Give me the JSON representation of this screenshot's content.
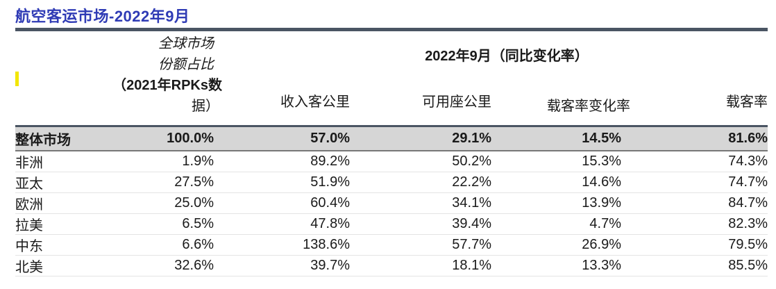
{
  "title": "航空客运市场-2022年9月",
  "header": {
    "share_line1": "全球市场",
    "share_line2": "份额占比",
    "share_line3": "（2021年RPKs数",
    "share_line4": "据）",
    "group_title": "2022年9月（同比变化率）",
    "col_rpk": "收入客公里",
    "col_ask": "可用座公里",
    "col_plf_change": "载客率变化率",
    "col_plf": "载客率"
  },
  "rows": [
    {
      "name": "整体市场",
      "share": "100.0%",
      "rpk": "57.0%",
      "ask": "29.1%",
      "plf_change": "14.5%",
      "plf": "81.6%"
    },
    {
      "name": "非洲",
      "share": "1.9%",
      "rpk": "89.2%",
      "ask": "50.2%",
      "plf_change": "15.3%",
      "plf": "74.3%"
    },
    {
      "name": "亚太",
      "share": "27.5%",
      "rpk": "51.9%",
      "ask": "22.2%",
      "plf_change": "14.6%",
      "plf": "74.7%"
    },
    {
      "name": "欧洲",
      "share": "25.0%",
      "rpk": "60.4%",
      "ask": "34.1%",
      "plf_change": "13.9%",
      "plf": "84.7%"
    },
    {
      "name": "拉美",
      "share": "6.5%",
      "rpk": "47.8%",
      "ask": "39.4%",
      "plf_change": "4.7%",
      "plf": "82.3%"
    },
    {
      "name": "中东",
      "share": "6.6%",
      "rpk": "138.6%",
      "ask": "57.7%",
      "plf_change": "26.9%",
      "plf": "79.5%"
    },
    {
      "name": "北美",
      "share": "32.6%",
      "rpk": "39.7%",
      "ask": "18.1%",
      "plf_change": "13.3%",
      "plf": "85.5%"
    }
  ],
  "colors": {
    "title": "#2f3bb5",
    "rule": "#4a5563",
    "total_row_bg": "#d6d6d6",
    "marker": "#f2e600"
  }
}
